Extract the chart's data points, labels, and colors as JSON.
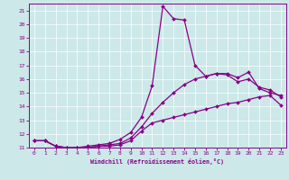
{
  "xlabel": "Windchill (Refroidissement éolien,°C)",
  "bg_color": "#cce8e8",
  "line_color": "#880088",
  "grid_color": "#ffffff",
  "spine_color": "#880088",
  "xlim": [
    -0.5,
    23.5
  ],
  "ylim": [
    11,
    21.5
  ],
  "xticks": [
    0,
    1,
    2,
    3,
    4,
    5,
    6,
    7,
    8,
    9,
    10,
    11,
    12,
    13,
    14,
    15,
    16,
    17,
    18,
    19,
    20,
    21,
    22,
    23
  ],
  "yticks": [
    11,
    12,
    13,
    14,
    15,
    16,
    17,
    18,
    19,
    20,
    21
  ],
  "curve1_x": [
    0,
    1,
    2,
    3,
    4,
    5,
    6,
    7,
    8,
    9,
    10,
    11,
    12,
    13,
    14,
    15,
    16,
    17,
    18,
    19,
    20,
    21,
    22,
    23
  ],
  "curve1_y": [
    11.5,
    11.5,
    11.1,
    11.0,
    11.0,
    11.0,
    11.1,
    11.1,
    11.2,
    11.5,
    12.2,
    12.8,
    13.0,
    13.2,
    13.4,
    13.6,
    13.8,
    14.0,
    14.2,
    14.3,
    14.5,
    14.7,
    14.8,
    14.1
  ],
  "curve2_x": [
    0,
    1,
    2,
    3,
    4,
    5,
    6,
    7,
    8,
    9,
    10,
    11,
    12,
    13,
    14,
    15,
    16,
    17,
    18,
    19,
    20,
    21,
    22,
    23
  ],
  "curve2_y": [
    11.5,
    11.5,
    11.1,
    11.0,
    11.0,
    11.1,
    11.2,
    11.3,
    11.6,
    12.1,
    13.2,
    15.5,
    21.3,
    20.4,
    20.3,
    17.0,
    16.2,
    16.4,
    16.4,
    16.1,
    16.5,
    15.3,
    15.0,
    14.8
  ],
  "curve3_x": [
    0,
    1,
    2,
    3,
    4,
    5,
    6,
    7,
    8,
    9,
    10,
    11,
    12,
    13,
    14,
    15,
    16,
    17,
    18,
    19,
    20,
    21,
    22,
    23
  ],
  "curve3_y": [
    11.5,
    11.5,
    11.1,
    11.0,
    11.0,
    11.0,
    11.1,
    11.2,
    11.3,
    11.7,
    12.5,
    13.5,
    14.3,
    15.0,
    15.6,
    16.0,
    16.2,
    16.4,
    16.3,
    15.8,
    16.0,
    15.4,
    15.2,
    14.7
  ]
}
